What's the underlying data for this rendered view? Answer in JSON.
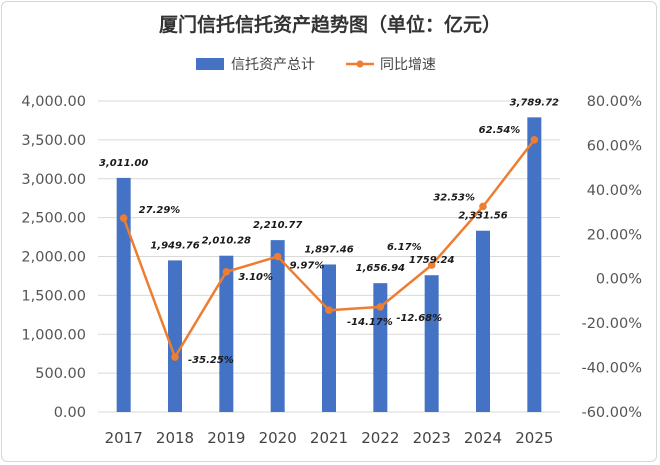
{
  "chart_data": {
    "type": "bar",
    "title": "厦门信托信托资产趋势图（单位：亿元）",
    "categories": [
      "2017",
      "2018",
      "2019",
      "2020",
      "2021",
      "2022",
      "2023",
      "2024",
      "2025"
    ],
    "series": [
      {
        "name": "信托资产总计",
        "type": "bar",
        "axis": "left",
        "color": "#4472c4",
        "values": [
          3011.0,
          1949.76,
          2010.28,
          2210.77,
          1897.46,
          1656.94,
          1759.24,
          2331.56,
          3789.72
        ],
        "labels": [
          "3,011.00",
          "1,949.76",
          "2,010.28",
          "2,210.77",
          "1,897.46",
          "1,656.94",
          "1759.24",
          "2,331.56",
          "3,789.72"
        ]
      },
      {
        "name": "同比增速",
        "type": "line",
        "axis": "right",
        "color": "#ed7d31",
        "values": [
          27.29,
          -35.25,
          3.1,
          9.97,
          -14.17,
          -12.68,
          6.17,
          32.53,
          62.54
        ],
        "labels": [
          "27.29%",
          "-35.25%",
          "3.10%",
          "9.97%",
          "-14.17%",
          "-12.68%",
          "6.17%",
          "32.53%",
          "62.54%"
        ]
      }
    ],
    "y_left": {
      "lim": [
        0,
        4000
      ],
      "ticks": [
        "0.00",
        "500.00",
        "1,000.00",
        "1,500.00",
        "2,000.00",
        "2,500.00",
        "3,000.00",
        "3,500.00",
        "4,000.00"
      ]
    },
    "y_right": {
      "lim": [
        -60,
        80
      ],
      "ticks": [
        "-60.00%",
        "-40.00%",
        "-20.00%",
        "0.00%",
        "20.00%",
        "40.00%",
        "60.00%",
        "80.00%"
      ]
    },
    "grid": true,
    "legend": "top-center"
  }
}
